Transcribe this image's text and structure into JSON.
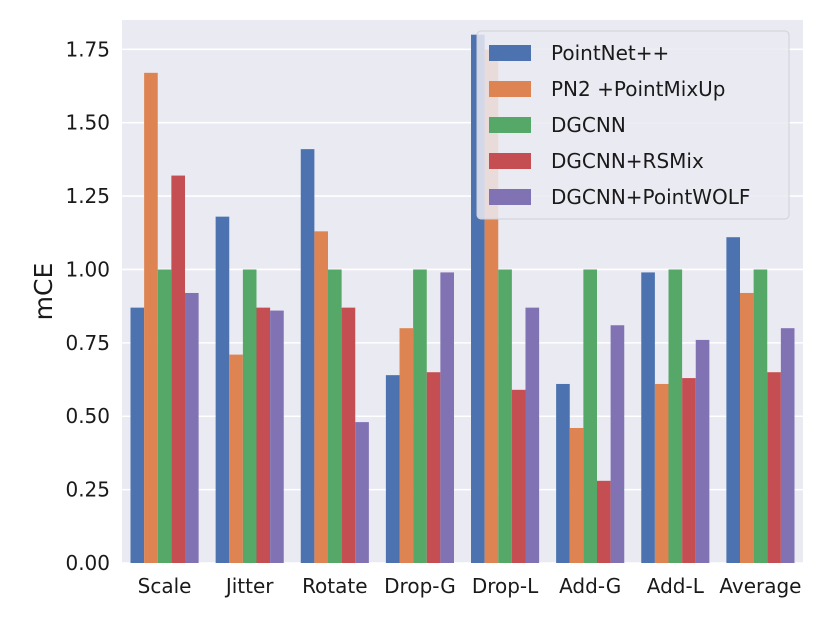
{
  "chart_data": {
    "type": "bar",
    "categories": [
      "Scale",
      "Jitter",
      "Rotate",
      "Drop-G",
      "Drop-L",
      "Add-G",
      "Add-L",
      "Average"
    ],
    "series": [
      {
        "name": "PointNet++",
        "color": "#4c72b0",
        "values": [
          0.87,
          1.18,
          1.41,
          0.64,
          1.8,
          0.61,
          0.99,
          1.11
        ]
      },
      {
        "name": "PN2 +PointMixUp",
        "color": "#dd8452",
        "values": [
          1.67,
          0.71,
          1.13,
          0.8,
          1.75,
          0.46,
          0.61,
          0.92
        ]
      },
      {
        "name": "DGCNN",
        "color": "#55a868",
        "values": [
          1.0,
          1.0,
          1.0,
          1.0,
          1.0,
          1.0,
          1.0,
          1.0
        ]
      },
      {
        "name": "DGCNN+RSMix",
        "color": "#c44e52",
        "values": [
          1.32,
          0.87,
          0.87,
          0.65,
          0.59,
          0.28,
          0.63,
          0.65
        ]
      },
      {
        "name": "DGCNN+PointWOLF",
        "color": "#8172b3",
        "values": [
          0.92,
          0.86,
          0.48,
          0.99,
          0.87,
          0.81,
          0.76,
          0.8
        ]
      }
    ],
    "title": "",
    "xlabel": "",
    "ylabel": "mCE",
    "ylim": [
      0,
      1.85
    ],
    "yticks": [
      "0.00",
      "0.25",
      "0.50",
      "0.75",
      "1.00",
      "1.25",
      "1.50",
      "1.75"
    ],
    "ytick_values": [
      0,
      0.25,
      0.5,
      0.75,
      1.0,
      1.25,
      1.5,
      1.75
    ],
    "grid": true,
    "legend_position": "top-right",
    "background_color": "#eaeaf2",
    "grid_color": "#ffffff"
  }
}
